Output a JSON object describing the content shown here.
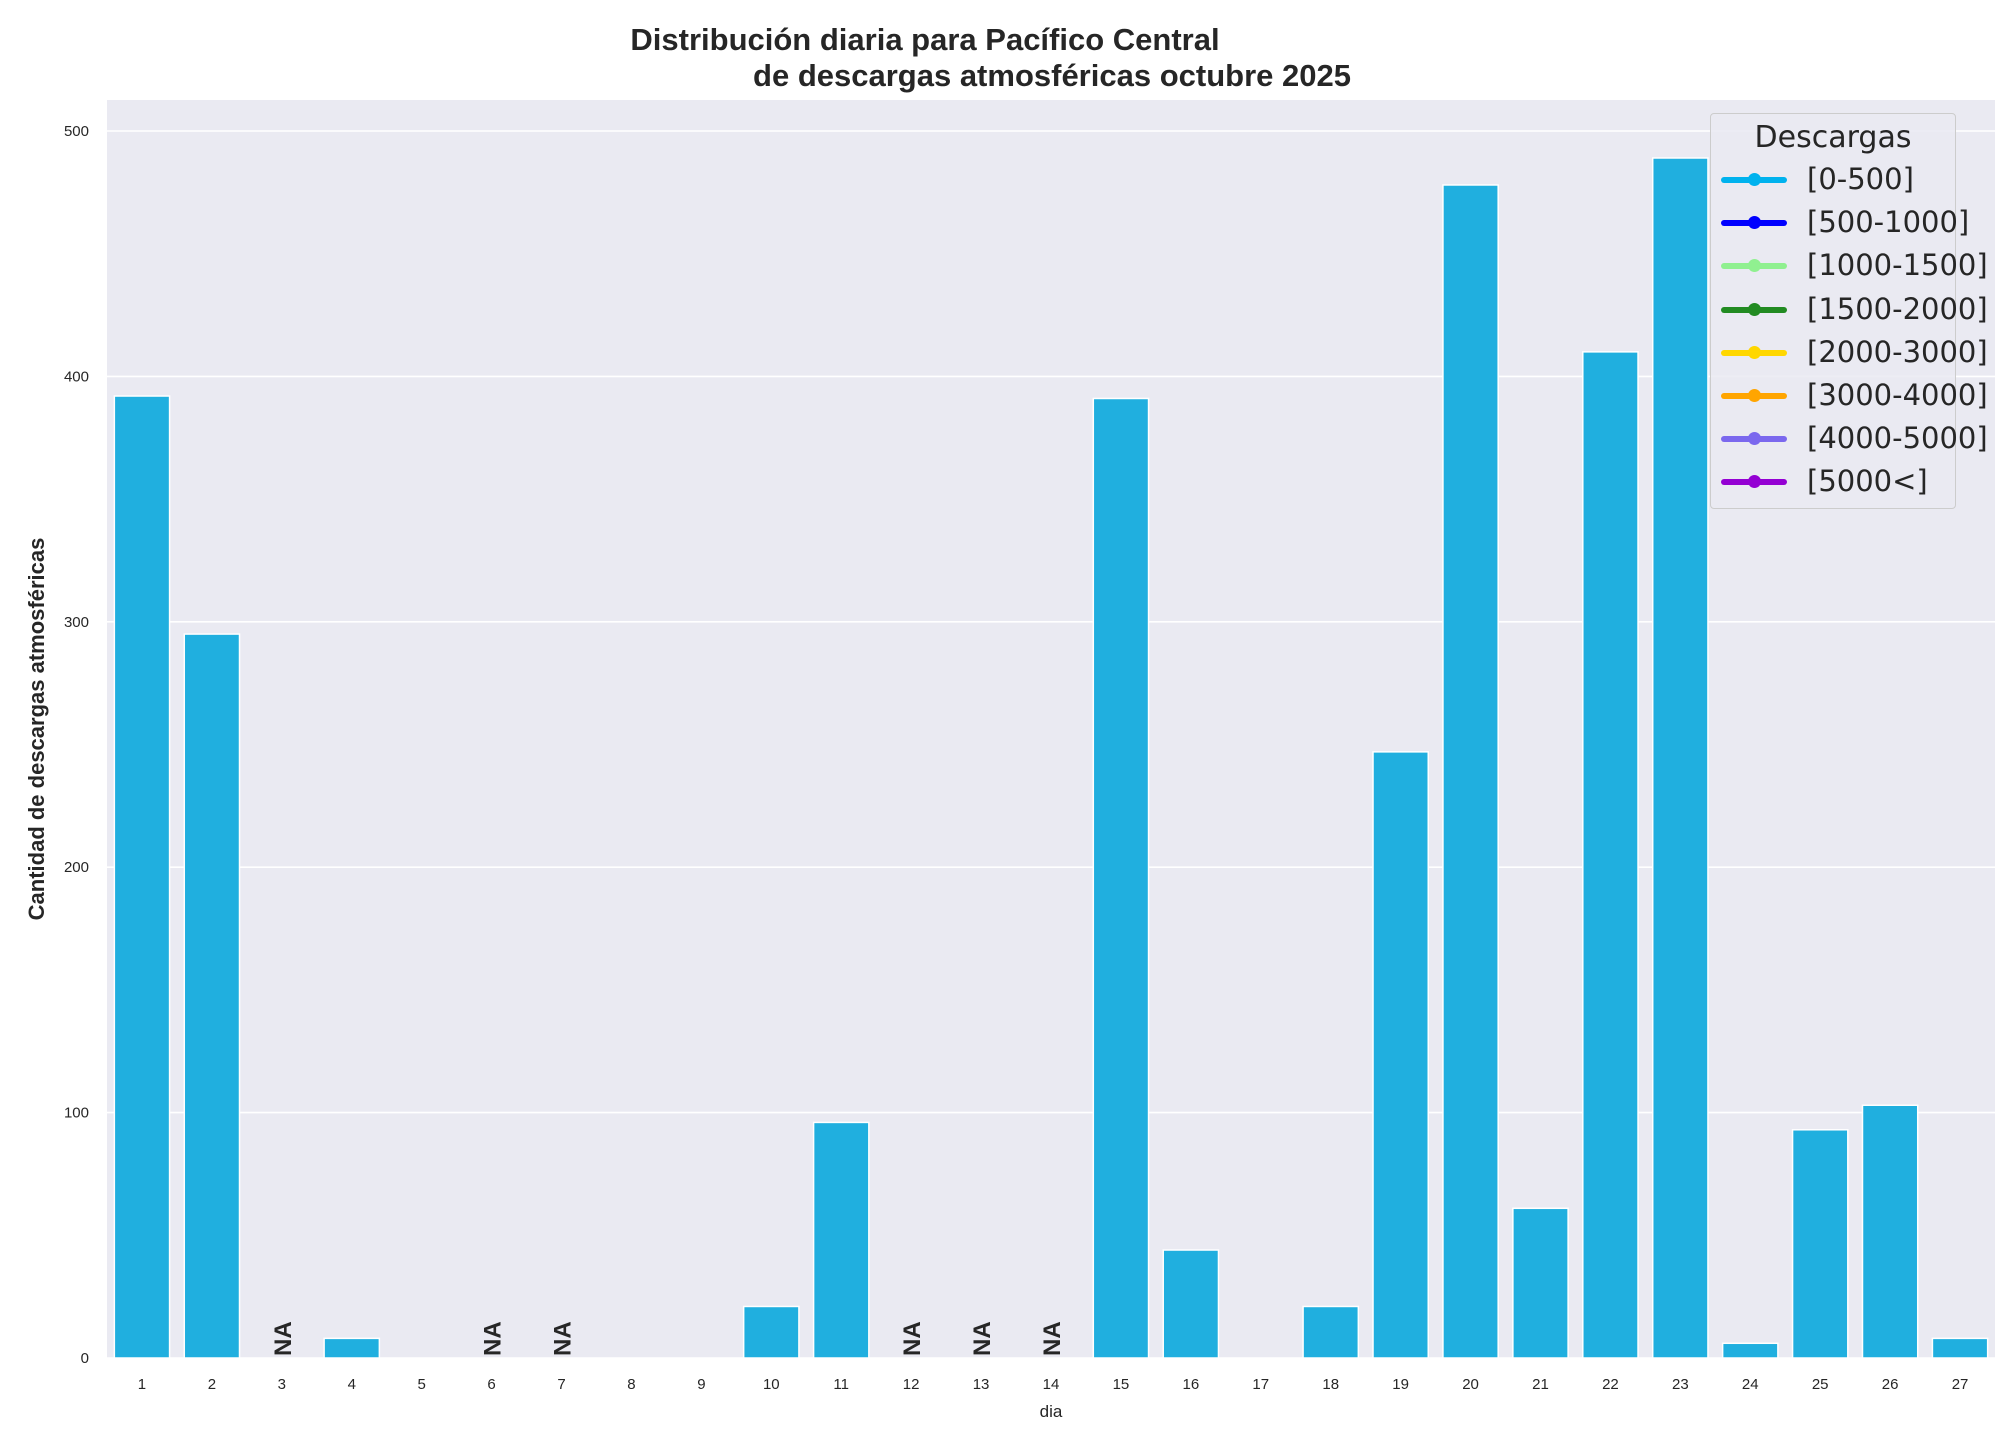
{
  "chart_data": {
    "type": "bar",
    "title": "Distribución diaria para Pacífico Central\n de descargas atmosféricas octubre 2025",
    "xlabel": "dia",
    "ylabel": "Cantidad de descargas atmosféricas",
    "ylim": [
      0,
      513
    ],
    "yticks": [
      0,
      100,
      200,
      300,
      400,
      500
    ],
    "grid": true,
    "categories": [
      "1",
      "2",
      "3",
      "4",
      "5",
      "6",
      "7",
      "8",
      "9",
      "10",
      "11",
      "12",
      "13",
      "14",
      "15",
      "16",
      "17",
      "18",
      "19",
      "20",
      "21",
      "22",
      "23",
      "24",
      "25",
      "26",
      "27"
    ],
    "values": [
      392,
      295,
      null,
      8,
      0,
      null,
      null,
      0,
      0,
      21,
      96,
      null,
      null,
      null,
      391,
      44,
      0,
      21,
      247,
      478,
      61,
      410,
      489,
      6,
      93,
      103,
      8
    ],
    "missing_label": "NA",
    "bar_color": "#20afdf",
    "legend": {
      "title": "Descargas",
      "placement": "top-right",
      "entries": [
        {
          "label": "[0-500]",
          "color": "#00b2ee"
        },
        {
          "label": "[500-1000]",
          "color": "#0000ff"
        },
        {
          "label": "[1000-1500]",
          "color": "#90f090"
        },
        {
          "label": "[1500-2000]",
          "color": "#228b22"
        },
        {
          "label": "[2000-3000]",
          "color": "#ffd700"
        },
        {
          "label": "[3000-4000]",
          "color": "#ffa500"
        },
        {
          "label": "[4000-5000]",
          "color": "#7b68ee"
        },
        {
          "label": "[5000<]",
          "color": "#9400d3"
        }
      ]
    }
  }
}
